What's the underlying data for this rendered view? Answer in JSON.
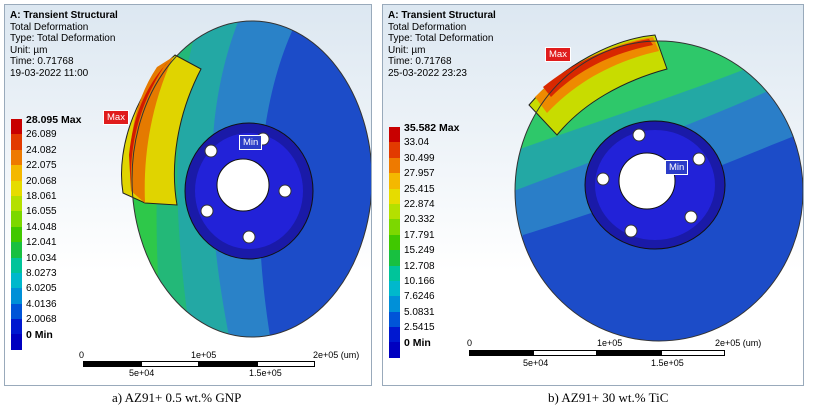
{
  "panels": [
    {
      "title": "A: Transient Structural",
      "lines": [
        "Total Deformation",
        "Type: Total Deformation",
        "Unit: µm",
        "Time: 0.71768",
        "19-03-2022 11:00"
      ],
      "legend": [
        "28.095 Max",
        "26.089",
        "24.082",
        "22.075",
        "20.068",
        "18.061",
        "16.055",
        "14.048",
        "12.041",
        "10.034",
        "8.0273",
        "6.0205",
        "4.0136",
        "2.0068",
        "0 Min"
      ],
      "max_label": "Max",
      "min_label": "Min",
      "scale_top": [
        "0",
        "1e+05",
        "2e+05 (um)"
      ],
      "scale_bottom": [
        "5e+04",
        "1.5e+05"
      ],
      "caption": "a) AZ91+ 0.5 wt.% GNP"
    },
    {
      "title": "A: Transient Structural",
      "lines": [
        "Total Deformation",
        "Type: Total Deformation",
        "Unit: µm",
        "Time: 0.71768",
        "25-03-2022 23:23"
      ],
      "legend": [
        "35.582 Max",
        "33.04",
        "30.499",
        "27.957",
        "25.415",
        "22.874",
        "20.332",
        "17.791",
        "15.249",
        "12.708",
        "10.166",
        "7.6246",
        "5.0831",
        "2.5415",
        "0 Min"
      ],
      "max_label": "Max",
      "min_label": "Min",
      "scale_top": [
        "0",
        "1e+05",
        "2e+05 (um)"
      ],
      "scale_bottom": [
        "5e+04",
        "1.5e+05"
      ],
      "caption": "b) AZ91+ 30 wt.% TiC"
    }
  ],
  "colors": {
    "legend": [
      "#c80000",
      "#e23a00",
      "#ee7a00",
      "#f4b800",
      "#e6dc00",
      "#b4e000",
      "#7cd800",
      "#40c800",
      "#18c040",
      "#00c49a",
      "#00b8cc",
      "#0090d8",
      "#0054d8",
      "#0018d0",
      "#0000c0"
    ]
  }
}
